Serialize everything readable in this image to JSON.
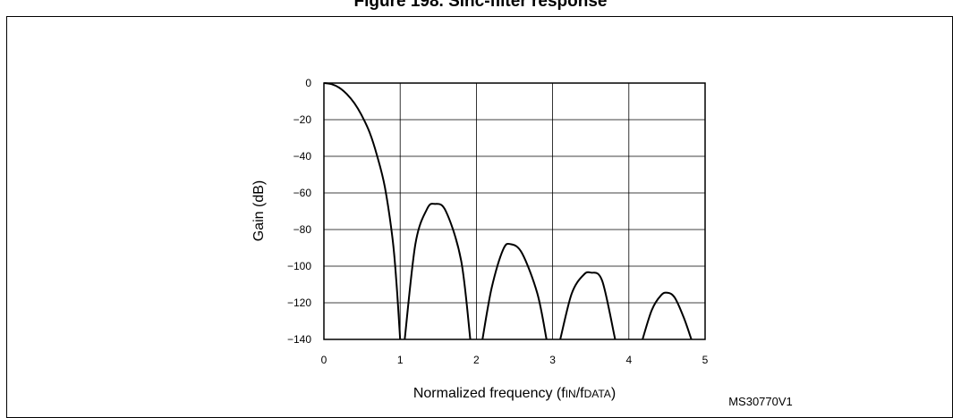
{
  "figure": {
    "title": "Figure 198. Sinc-filter response",
    "reference": "MS30770V1"
  },
  "chart_data": {
    "type": "line",
    "title": "",
    "xlabel": "Normalized frequency (fIN/fDATA)",
    "xlabel_parts": {
      "prefix": "Normalized frequency (f",
      "sub1": "IN",
      "slash": "/f",
      "sub2": "DATA",
      "suffix": ")"
    },
    "ylabel": "Gain (dB)",
    "xlim": [
      0,
      5
    ],
    "ylim": [
      -140,
      0
    ],
    "x_ticks": [
      "0",
      "1",
      "2",
      "3",
      "4",
      "5"
    ],
    "y_ticks": [
      "0",
      "−20",
      "−40",
      "−60",
      "−80",
      "−100",
      "−120",
      "−140"
    ],
    "grid": true,
    "line_color": "#000000",
    "series": [
      {
        "x": [
          0,
          0.1,
          0.2,
          0.3,
          0.4,
          0.5,
          0.6,
          0.7,
          0.8,
          0.9,
          0.95,
          1.0,
          1.06,
          1.2,
          1.35,
          1.45,
          1.6,
          1.8,
          1.92,
          2.08,
          2.2,
          2.35,
          2.45,
          2.6,
          2.8,
          2.92,
          3.1,
          3.25,
          3.4,
          3.5,
          3.65,
          3.82,
          4.18,
          4.3,
          4.42,
          4.5,
          4.6,
          4.72,
          4.82
        ],
        "y": [
          0,
          -0.6,
          -2.5,
          -6,
          -11,
          -18,
          -27,
          -40,
          -57,
          -85,
          -108,
          -140,
          -140,
          -88,
          -69,
          -66,
          -70,
          -97,
          -140,
          -140,
          -112,
          -91,
          -88,
          -93,
          -115,
          -140,
          -140,
          -115,
          -105,
          -103.5,
          -108,
          -140,
          -140,
          -124,
          -116,
          -114.5,
          -117,
          -128,
          -140
        ]
      }
    ]
  }
}
